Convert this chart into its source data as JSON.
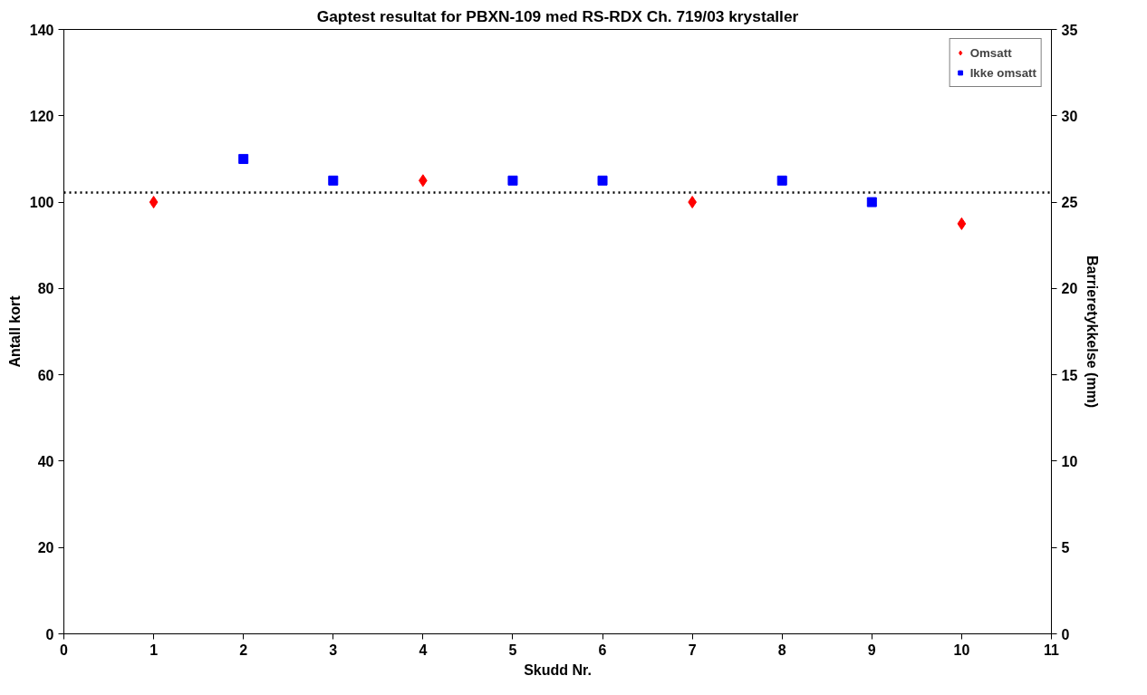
{
  "chart_data": {
    "type": "scatter",
    "title": "Gaptest resultat for PBXN-109 med RS-RDX Ch. 719/03 krystaller",
    "xlabel": "Skudd Nr.",
    "ylabel": "Antall kort",
    "y2label": "Barrieretykkelse (mm)",
    "xlim": [
      0,
      11
    ],
    "xticks": [
      0,
      1,
      2,
      3,
      4,
      5,
      6,
      7,
      8,
      9,
      10,
      11
    ],
    "ylim": [
      0,
      140
    ],
    "yticks": [
      0,
      20,
      40,
      60,
      80,
      100,
      120,
      140
    ],
    "y2lim": [
      0,
      35
    ],
    "y2ticks": [
      0,
      5,
      10,
      15,
      20,
      25,
      30,
      35
    ],
    "grid": false,
    "legend": "top right",
    "series": [
      {
        "name": "Omsatt",
        "color": "#ff0000",
        "marker": "diamond",
        "x": [
          1,
          4,
          7,
          10
        ],
        "values": [
          100,
          105,
          100,
          95
        ]
      },
      {
        "name": "Ikke omsatt",
        "color": "#0000ff",
        "marker": "square",
        "x": [
          2,
          3,
          5,
          6,
          8,
          9
        ],
        "values": [
          110,
          105,
          105,
          105,
          105,
          100
        ]
      }
    ],
    "ref_lines": [
      {
        "axis": "y",
        "value": 102.2,
        "color": "#000000",
        "line_style": "dotted"
      }
    ]
  }
}
